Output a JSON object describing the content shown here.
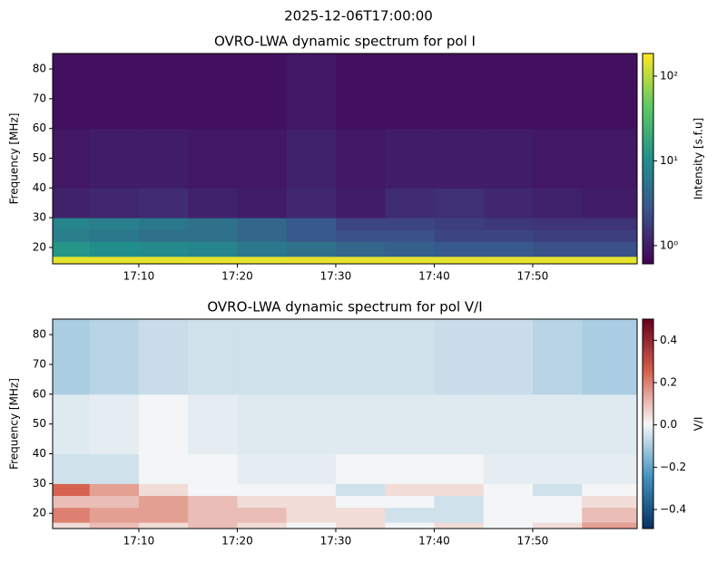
{
  "title": "2025-12-06T17:00:00",
  "chart_data": [
    {
      "type": "heatmap",
      "title": "OVRO-LWA dynamic spectrum for pol I",
      "ylabel": "Frequency [MHz]",
      "colormap": "viridis",
      "color_scale": "log",
      "clim": [
        0.61,
        185
      ],
      "colorbar_label": "Intensity [s.f.u]",
      "cticks": [
        {
          "value": 1,
          "label": "10⁰"
        },
        {
          "value": 10,
          "label": "10¹"
        },
        {
          "value": 100,
          "label": "10²"
        }
      ],
      "xlim": [
        1.25,
        60.6
      ],
      "ylim": [
        14.5,
        85.2
      ],
      "xticks": [
        {
          "value": 10,
          "label": "17:10"
        },
        {
          "value": 20,
          "label": "17:20"
        },
        {
          "value": 30,
          "label": "17:30"
        },
        {
          "value": 40,
          "label": "17:40"
        },
        {
          "value": 50,
          "label": "17:50"
        }
      ],
      "yticks": [
        20,
        30,
        40,
        50,
        60,
        70,
        80
      ],
      "x_edges": [
        1.25,
        5,
        10,
        15,
        20,
        25,
        30,
        35,
        40,
        45,
        50,
        55,
        60.6
      ],
      "y_edges": [
        14.5,
        17,
        22,
        26,
        30,
        40,
        60,
        85.2
      ],
      "z": [
        [
          150,
          150,
          150,
          150,
          150,
          150,
          150,
          150,
          150,
          150,
          150,
          150
        ],
        [
          12,
          10,
          9,
          8,
          6,
          5,
          4,
          3.5,
          3,
          3,
          2.5,
          2.5
        ],
        [
          7,
          6,
          5,
          5,
          4,
          3,
          2.5,
          2.5,
          2,
          2,
          1.8,
          1.8
        ],
        [
          8,
          7,
          6,
          5,
          4,
          3,
          2,
          2,
          1.8,
          1.6,
          1.5,
          1.5
        ],
        [
          1.1,
          1.2,
          1.3,
          1.1,
          1.0,
          1.2,
          1.0,
          1.3,
          1.4,
          1.2,
          1.1,
          1.0
        ],
        [
          0.9,
          1.0,
          1.0,
          0.9,
          0.9,
          1.1,
          0.9,
          1.0,
          1.0,
          1.0,
          0.9,
          0.9
        ],
        [
          0.8,
          0.8,
          0.8,
          0.8,
          0.8,
          0.9,
          0.8,
          0.8,
          0.8,
          0.8,
          0.8,
          0.8
        ]
      ]
    },
    {
      "type": "heatmap",
      "title": "OVRO-LWA dynamic spectrum for pol V/I",
      "ylabel": "Frequency [MHz]",
      "colormap": "RdBu_r",
      "color_scale": "linear",
      "clim": [
        -0.49,
        0.5
      ],
      "colorbar_label": "V/I",
      "cticks": [
        {
          "value": -0.4,
          "label": "−0.4"
        },
        {
          "value": -0.2,
          "label": "−0.2"
        },
        {
          "value": 0,
          "label": "0.0"
        },
        0.2,
        0.4
      ],
      "xlim": [
        1.25,
        60.6
      ],
      "ylim": [
        14.9,
        85.2
      ],
      "xticks": [
        {
          "value": 10,
          "label": "17:10"
        },
        {
          "value": 20,
          "label": "17:20"
        },
        {
          "value": 30,
          "label": "17:30"
        },
        {
          "value": 40,
          "label": "17:40"
        },
        {
          "value": 50,
          "label": "17:50"
        }
      ],
      "yticks": [
        20,
        30,
        40,
        50,
        60,
        70,
        80
      ],
      "x_edges": [
        1.25,
        5,
        10,
        15,
        20,
        25,
        30,
        35,
        40,
        45,
        50,
        55,
        60.6
      ],
      "y_edges": [
        14.9,
        17,
        22,
        26,
        30,
        40,
        60,
        85.2
      ],
      "z": [
        [
          0.05,
          0.1,
          0.05,
          0.1,
          0.05,
          0,
          0.05,
          0,
          0.05,
          0,
          0.05,
          0.15
        ],
        [
          0.2,
          0.15,
          0.15,
          0.1,
          0.1,
          0.05,
          0.05,
          -0.05,
          -0.05,
          0,
          0,
          0.1
        ],
        [
          0.1,
          0.1,
          0.15,
          0.1,
          0.05,
          0.05,
          0,
          0,
          -0.05,
          0,
          0,
          0.05
        ],
        [
          0.25,
          0.15,
          0.05,
          0,
          0,
          0,
          -0.05,
          0.05,
          0.05,
          0,
          -0.05,
          0
        ],
        [
          -0.05,
          -0.05,
          0,
          0,
          -0.02,
          -0.02,
          0,
          0,
          0,
          -0.02,
          -0.02,
          -0.02
        ],
        [
          -0.03,
          -0.02,
          0,
          -0.02,
          -0.03,
          -0.03,
          -0.03,
          -0.03,
          -0.03,
          -0.03,
          -0.03,
          -0.03
        ],
        [
          -0.1,
          -0.08,
          -0.06,
          -0.05,
          -0.05,
          -0.05,
          -0.05,
          -0.05,
          -0.06,
          -0.06,
          -0.08,
          -0.1
        ]
      ]
    }
  ]
}
